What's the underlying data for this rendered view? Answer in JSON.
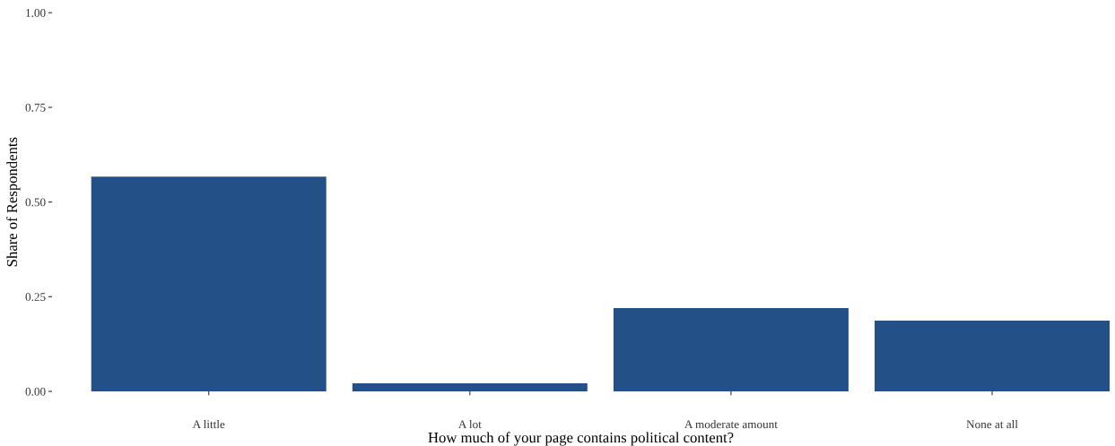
{
  "chart_data": {
    "type": "bar",
    "xlabel": "How much of your page contains political content?",
    "ylabel": "Share of Respondents",
    "categories": [
      "A little",
      "A lot",
      "A moderate amount",
      "None at all"
    ],
    "values": [
      0.567,
      0.021,
      0.22,
      0.187
    ],
    "color": "#235087",
    "ylim": [
      0,
      1
    ],
    "yticks": [
      {
        "value": 0,
        "label": "0.00"
      },
      {
        "value": 0.25,
        "label": "0.25"
      },
      {
        "value": 0.5,
        "label": "0.50"
      },
      {
        "value": 0.75,
        "label": "0.75"
      },
      {
        "value": 1,
        "label": "1.00"
      }
    ],
    "grid": false
  }
}
